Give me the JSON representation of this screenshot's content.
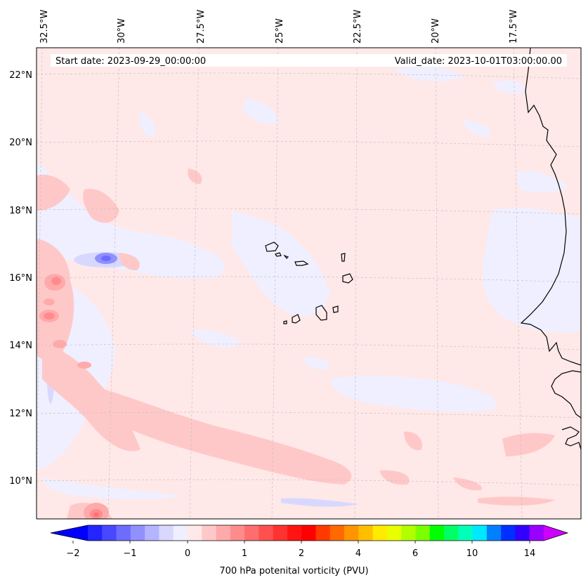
{
  "map": {
    "start_label": "Start date: 2023-09-29_00:00:00",
    "valid_label": "Valid_date: 2023-10-01T03:00:00.00",
    "lon_labels": [
      "32.5°W",
      "30°W",
      "27.5°W",
      "25°W",
      "22.5°W",
      "20°W",
      "17.5°W"
    ],
    "lat_labels": [
      "22°N",
      "20°N",
      "18°N",
      "16°N",
      "14°N",
      "12°N",
      "10°N"
    ],
    "extent": {
      "lon_min": -32.6,
      "lon_max": -15.0,
      "lat_min": 8.9,
      "lat_max": 22.8
    },
    "background_color": "#ffe8e8",
    "coastline_color": "#000000"
  },
  "colorbar": {
    "label": "700 hPa potenital vorticity (PVU)",
    "tick_labels": [
      "−2",
      "−1",
      "0",
      "1",
      "2",
      "4",
      "6",
      "10",
      "14"
    ],
    "colors": [
      "#0000ff",
      "#2424ff",
      "#4848ff",
      "#6c6cff",
      "#9090ff",
      "#b4b4ff",
      "#d8d8ff",
      "#efefff",
      "#ffe8e8",
      "#ffc8c8",
      "#ffaaaa",
      "#ff8c8c",
      "#ff6e6e",
      "#ff5050",
      "#ff3232",
      "#ff1414",
      "#ff0000",
      "#ff3a00",
      "#ff6a00",
      "#ff9500",
      "#ffbf00",
      "#ffea00",
      "#e8ff00",
      "#b0ff00",
      "#7cff00",
      "#00ff00",
      "#00ff64",
      "#00ffb8",
      "#00e8ff",
      "#0080ff",
      "#0030ff",
      "#3300ff",
      "#9900ff",
      "#cc00ff"
    ],
    "under_color": "#0000ff",
    "over_color": "#cc00ff"
  }
}
